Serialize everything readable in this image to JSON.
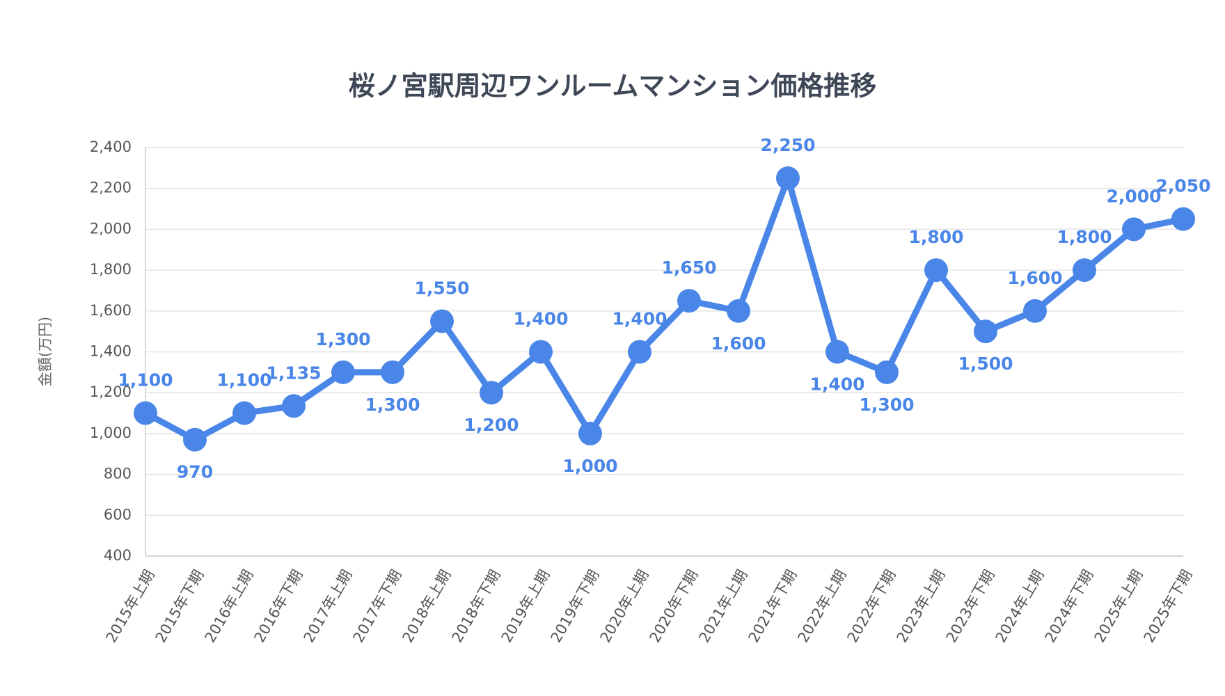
{
  "chart_data": {
    "type": "line",
    "title": "桜ノ宮駅周辺ワンルームマンション価格推移",
    "y_label": "金額(万円)",
    "categories": [
      "2015年上期",
      "2015年下期",
      "2016年上期",
      "2016年下期",
      "2017年上期",
      "2017年下期",
      "2018年上期",
      "2018年下期",
      "2019年上期",
      "2019年下期",
      "2020年上期",
      "2020年下期",
      "2021年上期",
      "2021年下期",
      "2022年上期",
      "2022年下期",
      "2023年上期",
      "2023年下期",
      "2024年上期",
      "2024年下期",
      "2025年上期",
      "2025年下期"
    ],
    "series": [
      {
        "name": "金額",
        "color": "#4a86e8",
        "values": [
          1100,
          970,
          1100,
          1135,
          1300,
          1300,
          1550,
          1200,
          1400,
          1000,
          1400,
          1650,
          1600,
          2250,
          1400,
          1300,
          1800,
          1500,
          1600,
          1800,
          2000,
          2050
        ],
        "value_labels": [
          "1,100",
          "970",
          "1,100",
          "1,135",
          "1,300",
          "1,300",
          "1,550",
          "1,200",
          "1,400",
          "1,000",
          "1,400",
          "1,650",
          "1,600",
          "2,250",
          "1,400",
          "1,300",
          "1,800",
          "1,500",
          "1,600",
          "1,800",
          "2,000",
          "2,050"
        ]
      }
    ],
    "ylim": [
      400,
      2400
    ],
    "yticks": [
      {
        "value": 400,
        "label": "400"
      },
      {
        "value": 600,
        "label": "600"
      },
      {
        "value": 800,
        "label": "800"
      },
      {
        "value": 1000,
        "label": "1,000"
      },
      {
        "value": 1200,
        "label": "1,200"
      },
      {
        "value": 1400,
        "label": "1,400"
      },
      {
        "value": 1600,
        "label": "1,600"
      },
      {
        "value": 1800,
        "label": "1,800"
      },
      {
        "value": 2000,
        "label": "2,000"
      },
      {
        "value": 2200,
        "label": "2,200"
      },
      {
        "value": 2400,
        "label": "2,400"
      }
    ],
    "grid": true
  }
}
